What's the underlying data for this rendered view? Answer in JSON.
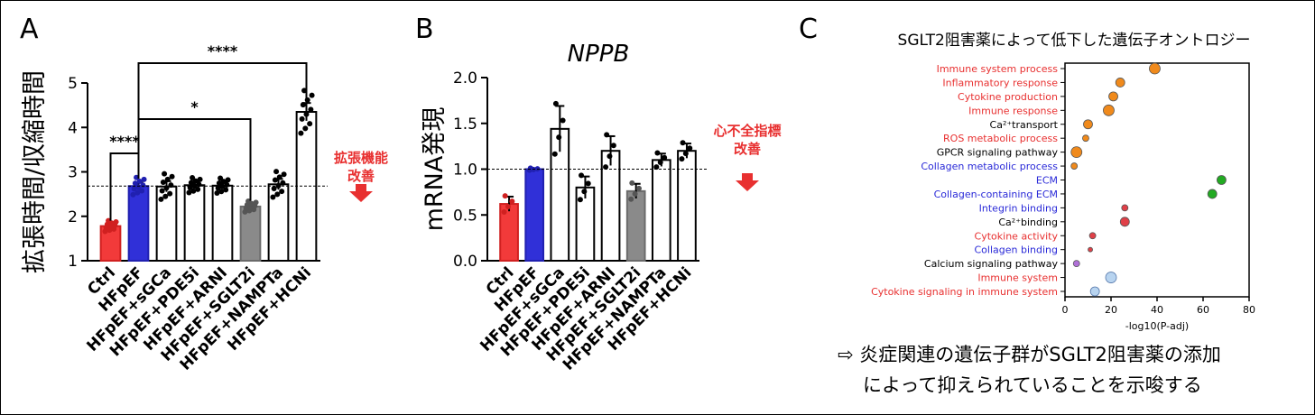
{
  "panels": {
    "a": "A",
    "b": "B",
    "c": "C"
  },
  "colors": {
    "ctrl": "#f23a3a",
    "hfpef": "#3030d8",
    "sglt2i": "#8a8a8a",
    "plain": "#ffffff",
    "red_text": "#e83030",
    "blue_text": "#2a2ad8",
    "orange": "#f08a1c",
    "green": "#22aa22",
    "red_dot": "#e04048",
    "purple": "#b070d8",
    "lightblue": "#b8d4f0"
  },
  "chart_data": [
    {
      "type": "bar",
      "ylabel": "拡張時間/収縮時間",
      "categories": [
        "Ctrl",
        "HFpEF",
        "HFpEF+sGCa",
        "HFpEF+PDE5i",
        "HFpEF+ARNI",
        "HFpEF+SGLT2i",
        "HFpEF+NAMPTa",
        "HFpEF+HCNi"
      ],
      "values": [
        1.78,
        2.68,
        2.67,
        2.7,
        2.69,
        2.22,
        2.72,
        4.35
      ],
      "errors": [
        0.05,
        0.08,
        0.12,
        0.07,
        0.07,
        0.05,
        0.12,
        0.2
      ],
      "ylim": [
        1,
        5
      ],
      "yticks": [
        "1",
        "2",
        "3",
        "4",
        "5"
      ],
      "reference_line": 2.68,
      "significance": [
        {
          "from": "Ctrl",
          "to": "HFpEF",
          "label": "****"
        },
        {
          "from": "HFpEF",
          "to": "HFpEF+SGLT2i",
          "label": "*"
        },
        {
          "from": "HFpEF",
          "to": "HFpEF+HCNi",
          "label": "****"
        }
      ],
      "annotation": [
        "拡張機能",
        "改善"
      ]
    },
    {
      "type": "bar",
      "title": "NPPB",
      "ylabel": "mRNA発現",
      "categories": [
        "Ctrl",
        "HFpEF",
        "HFpEF+sGCa",
        "HFpEF+PDE5i",
        "HFpEF+ARNI",
        "HFpEF+SGLT2i",
        "HFpEF+NAMPTa",
        "HFpEF+HCNi"
      ],
      "values": [
        0.62,
        1.0,
        1.44,
        0.8,
        1.2,
        0.76,
        1.1,
        1.2
      ],
      "errors": [
        0.08,
        0.01,
        0.25,
        0.12,
        0.16,
        0.08,
        0.07,
        0.08
      ],
      "ylim": [
        0,
        2
      ],
      "yticks": [
        "0.0",
        "0.5",
        "1.0",
        "1.5",
        "2.0"
      ],
      "reference_line": 1.0,
      "annotation": [
        "心不全指標",
        "改善"
      ]
    },
    {
      "type": "scatter",
      "title": "SGLT2阻害薬によって低下した遺伝子オントロジー",
      "xlabel": "-log10(P-adj)",
      "xlim": [
        0,
        80
      ],
      "xticks": [
        "0",
        "20",
        "40",
        "60",
        "80"
      ],
      "terms": [
        {
          "label": "Immune system process",
          "x": 39,
          "size": 11,
          "dot": "orange",
          "text": "red"
        },
        {
          "label": "Inflammatory response",
          "x": 24,
          "size": 9,
          "dot": "orange",
          "text": "red"
        },
        {
          "label": "Cytokine production",
          "x": 21,
          "size": 9,
          "dot": "orange",
          "text": "red"
        },
        {
          "label": "Immune response",
          "x": 19,
          "size": 11,
          "dot": "orange",
          "text": "red"
        },
        {
          "label": "Ca²⁺transport",
          "x": 10,
          "size": 9,
          "dot": "orange",
          "text": "black"
        },
        {
          "label": "ROS metabolic process",
          "x": 9,
          "size": 6,
          "dot": "orange",
          "text": "red"
        },
        {
          "label": "GPCR signaling pathway",
          "x": 5,
          "size": 11,
          "dot": "orange",
          "text": "black"
        },
        {
          "label": "Collagen metabolic process",
          "x": 4,
          "size": 6,
          "dot": "orange",
          "text": "blue"
        },
        {
          "label": "ECM",
          "x": 68,
          "size": 9,
          "dot": "green",
          "text": "blue"
        },
        {
          "label": "Collagen-containing ECM",
          "x": 64,
          "size": 9,
          "dot": "green",
          "text": "blue"
        },
        {
          "label": "Integrin binding",
          "x": 26,
          "size": 6,
          "dot": "red_dot",
          "text": "blue"
        },
        {
          "label": "Ca²⁺binding",
          "x": 26,
          "size": 9,
          "dot": "red_dot",
          "text": "black"
        },
        {
          "label": "Cytokine activity",
          "x": 12,
          "size": 6,
          "dot": "red_dot",
          "text": "red"
        },
        {
          "label": "Collagen binding",
          "x": 11,
          "size": 4,
          "dot": "red_dot",
          "text": "blue"
        },
        {
          "label": "Calcium signaling pathway",
          "x": 5,
          "size": 6,
          "dot": "purple",
          "text": "black"
        },
        {
          "label": "Immune system",
          "x": 20,
          "size": 11,
          "dot": "lightblue",
          "text": "red"
        },
        {
          "label": "Cytokine signaling in immune system",
          "x": 13,
          "size": 9,
          "dot": "lightblue",
          "text": "red"
        }
      ]
    }
  ],
  "footnote": {
    "line1": "⇨ 炎症関連の遺伝子群がSGLT2阻害薬の添加",
    "line2": "によって抑えられていることを示唆する"
  }
}
